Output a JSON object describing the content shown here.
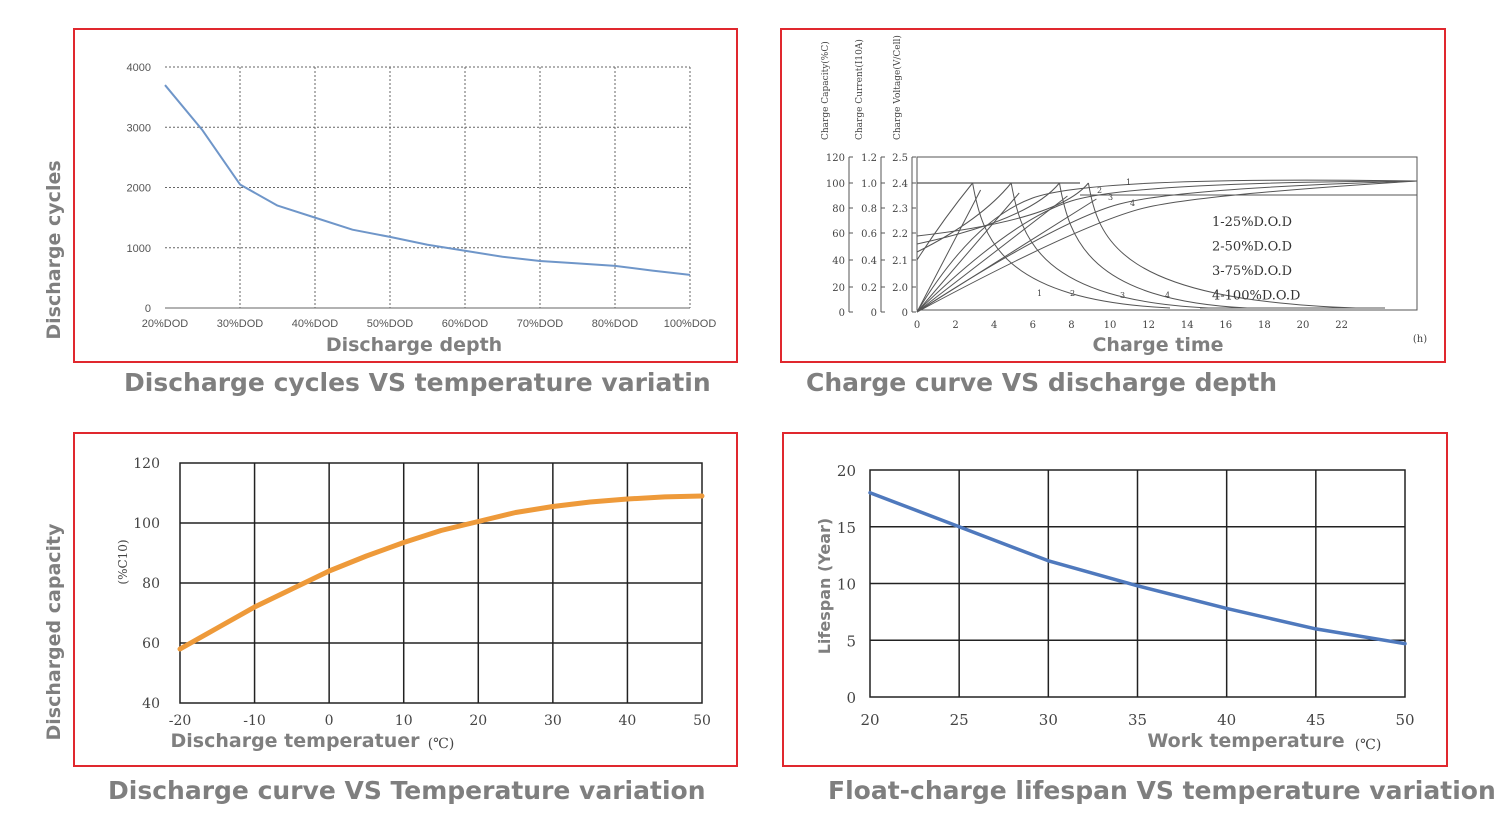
{
  "captions": {
    "c1": "Discharge cycles VS temperature variatin",
    "c2": "Charge curve VS discharge depth",
    "c3": "Discharge curve VS Temperature variation",
    "c4": "Float-charge lifespan VS temperature variation"
  },
  "colors": {
    "border": "#e0282e",
    "caption": "#7f7f7f",
    "blue_line": "#6f96c9",
    "orange_line": "#ee9a3a",
    "dark_blue_line": "#4f79bd"
  },
  "chart_data": [
    {
      "type": "line",
      "xlabel": "Discharge depth",
      "ylabel": "Discharge cycles",
      "categories": [
        "20%DOD",
        "30%DOD",
        "40%DOD",
        "50%DOD",
        "60%DOD",
        "70%DOD",
        "80%DOD",
        "100%DOD"
      ],
      "x": [
        0,
        0.5,
        1,
        1.5,
        2,
        2.5,
        3,
        3.5,
        4,
        4.5,
        5,
        5.5,
        6,
        6.5,
        7
      ],
      "y": [
        3700,
        2950,
        2050,
        1700,
        1500,
        1300,
        1180,
        1050,
        950,
        850,
        780,
        740,
        700,
        620,
        550
      ],
      "yticks": [
        0,
        1000,
        2000,
        3000,
        4000
      ],
      "ylim": [
        0,
        4000
      ],
      "grid": true
    },
    {
      "type": "line",
      "xlabel": "Charge time",
      "x_unit": "(h)",
      "xticks": [
        0,
        2,
        4,
        6,
        8,
        10,
        12,
        14,
        16,
        18,
        20,
        22
      ],
      "xlim": [
        0,
        26
      ],
      "y_axes": [
        {
          "label": "Charge Capacity(%C)",
          "ticks": [
            "120",
            "100",
            "80",
            "60",
            "40",
            "20",
            "0"
          ]
        },
        {
          "label": "Charge Current(I10A)",
          "ticks": [
            "1.2",
            "1.0",
            "0.8",
            "0.6",
            "0.4",
            "0.2",
            "0"
          ]
        },
        {
          "label": "Charge Voltage(V/Cell)",
          "ticks": [
            "2.5",
            "2.4",
            "2.3",
            "2.2",
            "2.1",
            "2.0",
            "0"
          ]
        }
      ],
      "legend": [
        "1-25%D.O.D",
        "2-50%D.O.D",
        "3-75%D.O.D",
        "4-100%D.O.D"
      ],
      "curve_numbers": [
        "1",
        "2",
        "3",
        "4"
      ],
      "series": [
        {
          "name": "1-25%D.O.D",
          "current_limit_end_h": 2,
          "full_charge_h": 10
        },
        {
          "name": "2-50%D.O.D",
          "current_limit_end_h": 4,
          "full_charge_h": 12
        },
        {
          "name": "3-75%D.O.D",
          "current_limit_end_h": 6.5,
          "full_charge_h": 14
        },
        {
          "name": "4-100%D.O.D",
          "current_limit_end_h": 8,
          "full_charge_h": 16
        }
      ],
      "grid": false
    },
    {
      "type": "line",
      "xlabel": "Discharge temperatuer",
      "x_unit": "(℃)",
      "ylabel": "Discharged capacity",
      "y_unit": "(%C10)",
      "x": [
        -20,
        -15,
        -10,
        -5,
        0,
        5,
        10,
        15,
        20,
        25,
        30,
        35,
        40,
        45,
        50
      ],
      "y": [
        58,
        65,
        72,
        78,
        84,
        89,
        93.5,
        97.5,
        100.5,
        103.5,
        105.5,
        107,
        108,
        108.7,
        109
      ],
      "xticks": [
        -20,
        -10,
        0,
        10,
        20,
        30,
        40,
        50
      ],
      "yticks": [
        40,
        60,
        80,
        100,
        120
      ],
      "xlim": [
        -20,
        50
      ],
      "ylim": [
        40,
        120
      ],
      "grid": true
    },
    {
      "type": "line",
      "xlabel": "Work temperature",
      "x_unit": "(℃)",
      "ylabel": "Lifespan (Year)",
      "x": [
        20,
        25,
        30,
        35,
        40,
        45,
        50
      ],
      "y": [
        18,
        15,
        12,
        9.8,
        7.8,
        6,
        4.7
      ],
      "xticks": [
        20,
        25,
        30,
        35,
        40,
        45,
        50
      ],
      "yticks": [
        0,
        5,
        10,
        15,
        20
      ],
      "xlim": [
        20,
        50
      ],
      "ylim": [
        0,
        20
      ],
      "grid": true
    }
  ]
}
